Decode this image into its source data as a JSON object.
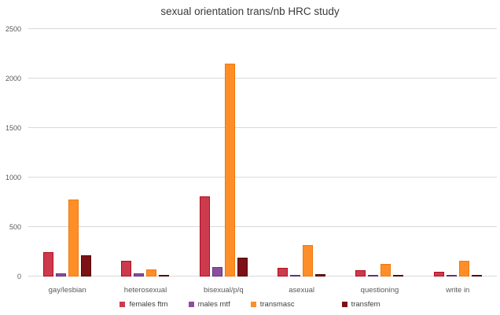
{
  "chart_data": {
    "type": "bar",
    "title": "sexual orientation trans/nb HRC study",
    "categories": [
      "gay/lesbian",
      "heterosexual",
      "bisexual/p/q",
      "asexual",
      "questioning",
      "write in"
    ],
    "series": [
      {
        "name": "females ftm",
        "fill": "#cc3b4d",
        "border": "#b10e1f",
        "values": [
          250,
          155,
          810,
          85,
          65,
          50
        ]
      },
      {
        "name": "males mtf",
        "fill": "#8c4fa0",
        "border": "#5f3377",
        "values": [
          30,
          30,
          95,
          15,
          12,
          15
        ]
      },
      {
        "name": "transmasc",
        "fill": "#ff8e27",
        "border": "#f0780f",
        "values": [
          775,
          70,
          2150,
          320,
          130,
          155
        ]
      },
      {
        "name": "transfem",
        "fill": "#7d1116",
        "border": "#4f0a0d",
        "values": [
          215,
          15,
          190,
          20,
          10,
          10
        ]
      }
    ],
    "xlabel": "",
    "ylabel": "",
    "ylim": [
      0,
      2500
    ],
    "yticks": [
      0,
      500,
      1000,
      1500,
      2000,
      2500
    ],
    "grid": true,
    "legend_position": "bottom",
    "colors": {
      "gridline": "#d9d9d9",
      "axis_text": "#595959",
      "title_text": "#3a3a3a",
      "background": "#ffffff"
    }
  }
}
